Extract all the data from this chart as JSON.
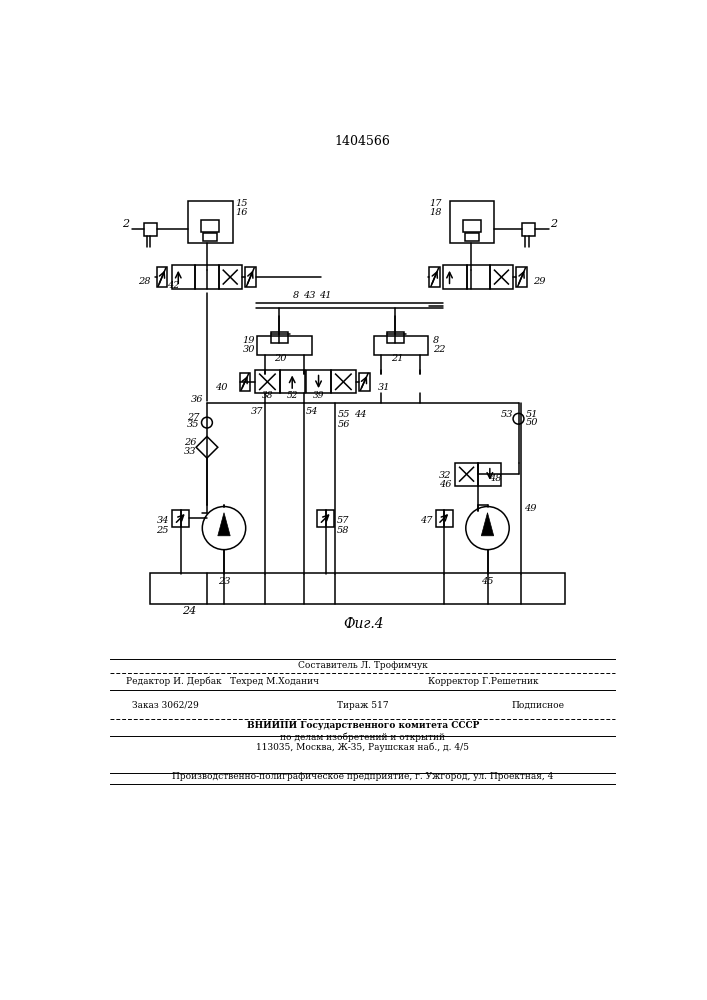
{
  "title": "1404566",
  "fig_label": "Фиг.4",
  "bg_color": "#ffffff",
  "footer": {
    "sostavitel": "Составитель Л. Трофимчук",
    "tehred": "Техред М.Ходанич",
    "korrektor": "Корректор Г.Решетник",
    "redaktor": "Редактор И. Дербак",
    "zakaz": "Заказ 3062/29",
    "tirazh": "Тираж 517",
    "podpisnoe": "Подписное",
    "vniipи1": "ВНИИПИ Государственного комитета СССР",
    "vniipи2": "по делам изобретений и открытий",
    "address": "113035, Москва, Ж-35, Раушская наб., д. 4/5",
    "proizv": "Производственно-полиграфическое предприятие, г. Ужгород, ул. Проектная, 4"
  }
}
